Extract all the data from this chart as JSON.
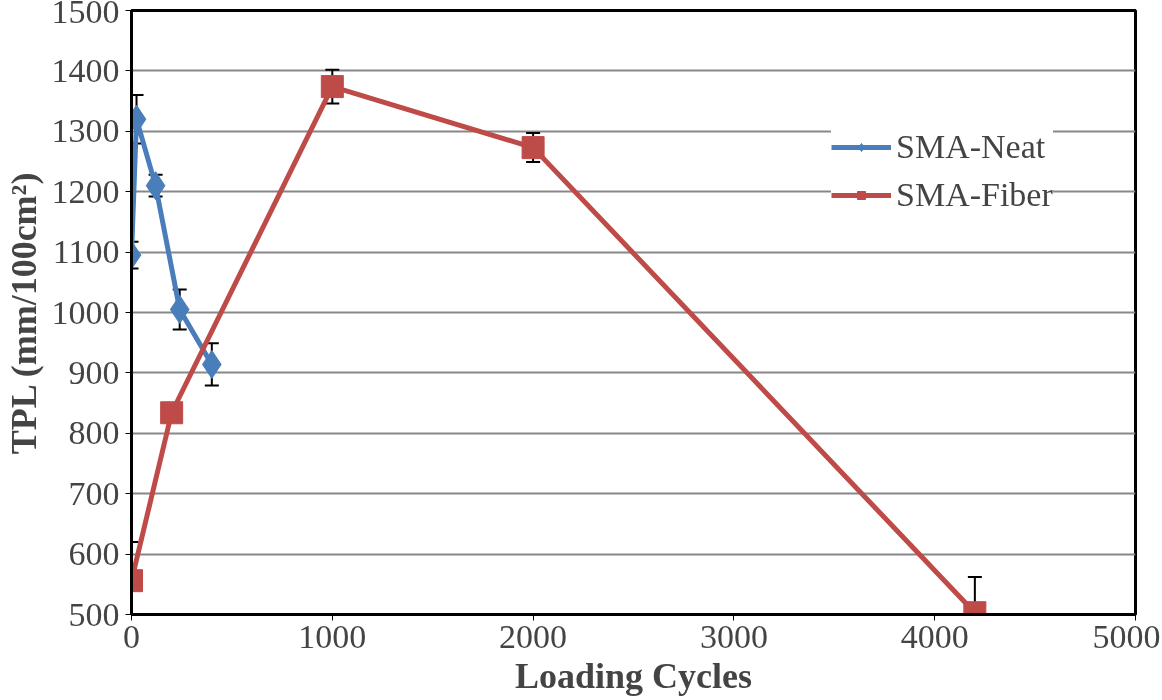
{
  "chart_data": {
    "type": "line",
    "xlabel": "Loading Cycles",
    "ylabel": "TPL (mm/100cm²)",
    "xlim": [
      0,
      5000
    ],
    "xticks": [
      0,
      1000,
      2000,
      3000,
      4000,
      5000
    ],
    "ylim": [
      500,
      1500
    ],
    "yticks": [
      500,
      600,
      700,
      800,
      900,
      1000,
      1100,
      1200,
      1300,
      1400,
      1500
    ],
    "grid": "y",
    "legend": "right",
    "series": [
      {
        "name": "SMA-Neat",
        "color": "#4a7ebb",
        "marker": "diamond",
        "x": [
          0,
          25,
          120,
          240,
          400
        ],
        "values": [
          1095,
          1320,
          1210,
          1005,
          914
        ],
        "errors": [
          22,
          40,
          18,
          33,
          35
        ]
      },
      {
        "name": "SMA-Fiber",
        "color": "#be4b48",
        "marker": "square",
        "x": [
          0,
          200,
          1000,
          2000,
          4200
        ],
        "values": [
          556,
          834,
          1374,
          1273,
          503
        ],
        "errors": [
          [
            556,
            620
          ],
          null,
          28,
          24,
          [
            503,
            562
          ]
        ]
      }
    ]
  }
}
